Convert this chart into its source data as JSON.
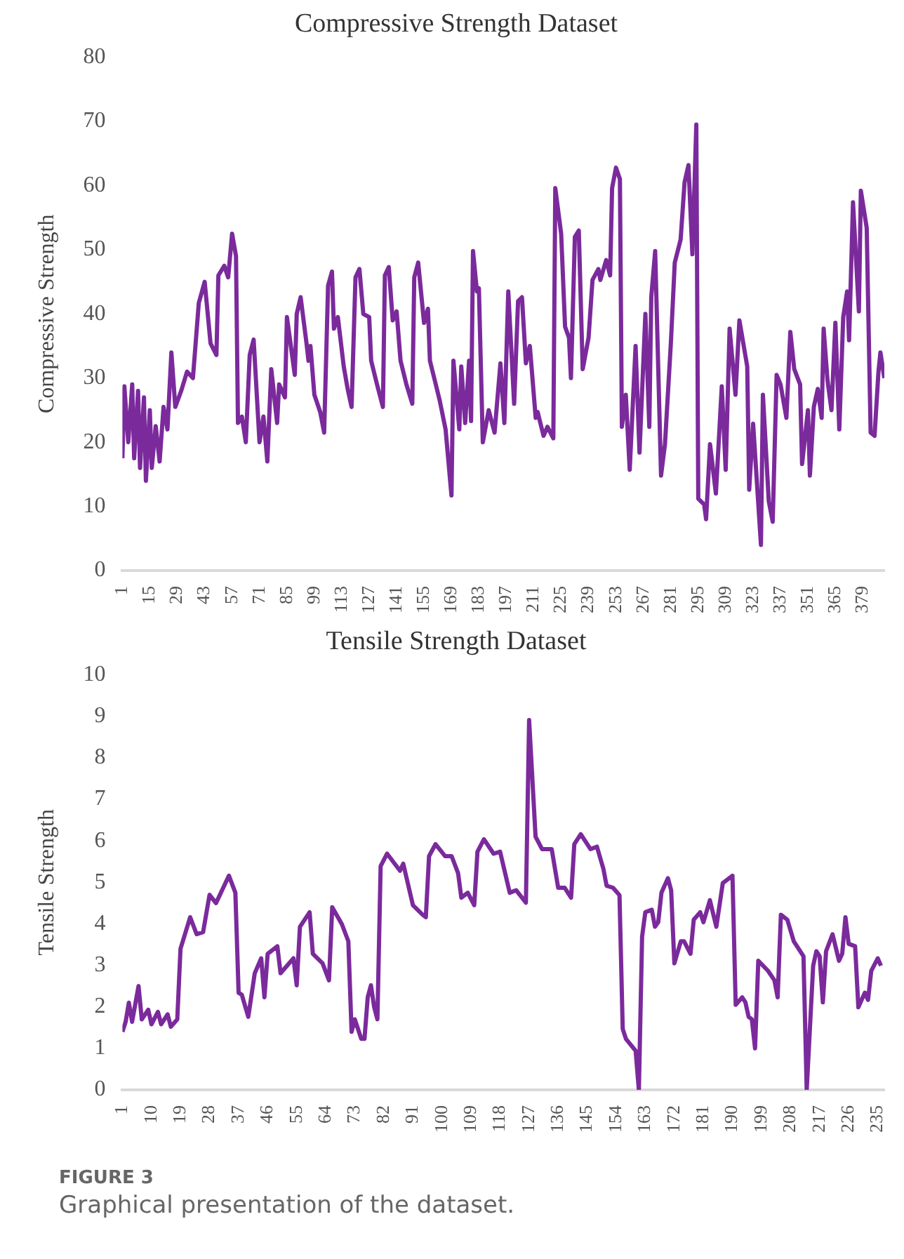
{
  "chart_data": [
    {
      "type": "line",
      "title": "Compressive Strength Dataset",
      "ylabel": "Compressive Strength",
      "x": [
        1,
        2,
        4,
        6,
        7,
        9,
        10,
        12,
        13,
        15,
        16,
        18,
        20,
        22,
        24,
        26,
        28,
        31,
        34,
        37,
        40,
        43,
        46,
        49,
        50,
        53,
        55,
        57,
        59,
        60,
        62,
        64,
        66,
        68,
        71,
        73,
        75,
        77,
        80,
        81,
        84,
        85,
        89,
        90,
        92,
        95,
        96,
        97,
        99,
        102,
        104,
        106,
        108,
        109,
        111,
        114,
        116,
        118,
        120,
        122,
        124,
        127,
        128,
        131,
        134,
        135,
        137,
        139,
        141,
        143,
        146,
        149,
        150,
        152,
        155,
        157,
        158,
        161,
        163,
        166,
        169,
        170,
        173,
        174,
        176,
        178,
        179,
        180,
        182,
        183,
        185,
        188,
        191,
        194,
        196,
        198,
        201,
        203,
        205,
        207,
        209,
        212,
        213,
        216,
        218,
        221,
        222,
        225,
        227,
        229,
        230,
        232,
        234,
        236,
        239,
        241,
        244,
        245,
        248,
        250,
        251,
        253,
        255,
        256,
        258,
        260,
        263,
        265,
        268,
        270,
        271,
        273,
        276,
        278,
        281,
        283,
        286,
        288,
        290,
        292,
        294,
        295,
        298,
        299,
        301,
        304,
        307,
        309,
        311,
        314,
        316,
        320,
        321,
        323,
        327,
        328,
        331,
        333,
        335,
        337,
        340,
        342,
        344,
        347,
        348,
        351,
        352,
        354,
        356,
        358,
        359,
        361,
        363,
        365,
        367,
        369,
        371,
        372,
        374,
        377,
        378,
        381,
        383,
        385,
        387,
        388,
        390
      ],
      "series": [
        {
          "color": "#7b2a9c",
          "values": [
            17.5,
            28.7,
            20,
            29,
            17.5,
            28,
            16,
            27,
            14,
            25,
            16,
            22.5,
            17,
            25.5,
            22,
            34,
            25.5,
            28,
            31,
            30,
            41.7,
            45,
            35.4,
            33.6,
            46,
            47.5,
            45.7,
            52.5,
            49,
            23,
            24,
            20,
            33.6,
            36,
            20,
            24,
            17,
            31.4,
            23,
            29,
            27,
            39.5,
            30.5,
            40,
            42.6,
            35.4,
            32.7,
            35,
            27.4,
            24.7,
            21.5,
            44.4,
            46.6,
            37.7,
            39.5,
            31.8,
            28.3,
            25.5,
            45.7,
            47,
            40,
            39.5,
            32.7,
            29,
            25.5,
            46,
            47.3,
            39,
            40.4,
            32.7,
            29,
            26,
            45.7,
            48,
            38.6,
            40.8,
            32.7,
            29,
            26.5,
            22,
            11.7,
            32.7,
            22,
            31.8,
            23,
            32.7,
            23.3,
            49.8,
            43.5,
            44,
            20,
            25,
            21.5,
            32.3,
            23,
            43.5,
            26,
            42,
            42.6,
            32.3,
            35,
            23.8,
            24.7,
            21,
            22.4,
            20.6,
            59.6,
            52.5,
            38,
            36.3,
            30,
            52,
            53,
            31.4,
            36.3,
            45.3,
            47,
            45.3,
            48.4,
            46,
            59.6,
            62.8,
            61,
            22.4,
            27.4,
            15.7,
            35,
            18.4,
            40,
            22.4,
            42.6,
            49.8,
            14.8,
            19.7,
            35.4,
            48,
            51.6,
            60.5,
            63.2,
            49.3,
            69.5,
            11.2,
            10.3,
            8,
            19.7,
            12,
            28.7,
            15.7,
            37.7,
            27.4,
            39,
            31.8,
            12.6,
            22.9,
            4,
            27.4,
            10.8,
            7.6,
            30.5,
            29,
            23.8,
            37.2,
            31.4,
            29,
            16.6,
            25,
            14.8,
            25.5,
            28.3,
            23.8,
            37.7,
            29.6,
            25,
            38.6,
            22,
            39.5,
            43.5,
            35.9,
            57.4,
            40.4,
            59.2,
            53.4,
            21.5,
            21,
            31,
            34,
            30
          ]
        }
      ],
      "xlim": [
        1,
        390
      ],
      "xticks": [
        1,
        15,
        29,
        43,
        57,
        71,
        85,
        99,
        113,
        127,
        141,
        155,
        169,
        183,
        197,
        211,
        225,
        239,
        253,
        267,
        281,
        295,
        309,
        323,
        337,
        351,
        365,
        379
      ],
      "ylim": [
        0,
        80
      ],
      "yticks": [
        0,
        10,
        20,
        30,
        40,
        50,
        60,
        70,
        80
      ]
    },
    {
      "type": "line",
      "title": "Tensile Strength Dataset",
      "ylabel": "Tensile Strength",
      "x": [
        1,
        2,
        3,
        4,
        6,
        7,
        9,
        10,
        12,
        13,
        15,
        16,
        18,
        19,
        22,
        24,
        26,
        28,
        30,
        34,
        36,
        37,
        38,
        40,
        42,
        44,
        45,
        46,
        49,
        50,
        54,
        55,
        56,
        59,
        60,
        63,
        65,
        66,
        69,
        71,
        72,
        73,
        75,
        76,
        77,
        78,
        79,
        80,
        81,
        83,
        87,
        88,
        91,
        94,
        95,
        96,
        98,
        101,
        103,
        105,
        106,
        108,
        110,
        111,
        113,
        116,
        118,
        121,
        123,
        126,
        127,
        129,
        131,
        134,
        136,
        138,
        140,
        141,
        143,
        146,
        148,
        150,
        151,
        153,
        155,
        156,
        157,
        160,
        161,
        162,
        163,
        165,
        166,
        167,
        168,
        170,
        171,
        172,
        174,
        175,
        177,
        178,
        180,
        181,
        183,
        185,
        187,
        190,
        191,
        193,
        194,
        195,
        196,
        197,
        198,
        201,
        203,
        204,
        205,
        207,
        209,
        212,
        213,
        215,
        216,
        217,
        218,
        219,
        221,
        223,
        224,
        225,
        226,
        228,
        229,
        231,
        232,
        233,
        235,
        236
      ],
      "series": [
        {
          "color": "#7b2a9c",
          "values": [
            1.4,
            1.64,
            2.1,
            1.64,
            2.5,
            1.7,
            1.93,
            1.58,
            1.88,
            1.58,
            1.82,
            1.52,
            1.7,
            3.4,
            4.16,
            3.75,
            3.8,
            4.7,
            4.5,
            5.16,
            4.75,
            2.34,
            2.29,
            1.76,
            2.81,
            3.17,
            2.23,
            3.28,
            3.46,
            2.81,
            3.17,
            2.52,
            3.93,
            4.28,
            3.28,
            3.05,
            2.64,
            4.4,
            3.99,
            3.58,
            1.4,
            1.7,
            1.23,
            1.23,
            2.23,
            2.52,
            1.99,
            1.7,
            5.39,
            5.69,
            5.28,
            5.45,
            4.45,
            4.22,
            4.16,
            5.63,
            5.92,
            5.63,
            5.63,
            5.22,
            4.63,
            4.75,
            4.45,
            5.74,
            6.04,
            5.69,
            5.74,
            4.75,
            4.81,
            4.51,
            8.91,
            6.1,
            5.8,
            5.8,
            4.87,
            4.87,
            4.63,
            5.92,
            6.16,
            5.8,
            5.86,
            5.33,
            4.92,
            4.87,
            4.69,
            1.47,
            1.23,
            0.94,
            0,
            3.69,
            4.28,
            4.34,
            3.93,
            4.04,
            4.75,
            5.1,
            4.81,
            3.05,
            3.58,
            3.58,
            3.28,
            4.1,
            4.28,
            4.04,
            4.57,
            3.93,
            4.98,
            5.16,
            2.05,
            2.23,
            2.11,
            1.76,
            1.7,
            1,
            3.11,
            2.87,
            2.64,
            2.23,
            4.22,
            4.1,
            3.58,
            3.22,
            0,
            2.99,
            3.34,
            3.22,
            2.11,
            3.34,
            3.75,
            3.11,
            3.28,
            4.16,
            3.52,
            3.46,
            1.99,
            2.34,
            2.17,
            2.87,
            3.17,
            2.99
          ]
        }
      ],
      "xlim": [
        1,
        237
      ],
      "xticks": [
        1,
        10,
        19,
        28,
        37,
        46,
        55,
        64,
        73,
        82,
        91,
        100,
        109,
        118,
        127,
        136,
        145,
        154,
        163,
        172,
        181,
        190,
        199,
        208,
        217,
        226,
        235
      ],
      "ylim": [
        0,
        10
      ],
      "yticks": [
        0,
        1,
        2,
        3,
        4,
        5,
        6,
        7,
        8,
        9,
        10
      ],
      "annotations": [
        "FIGURE 3",
        "Graphical presentation of the dataset."
      ]
    }
  ]
}
